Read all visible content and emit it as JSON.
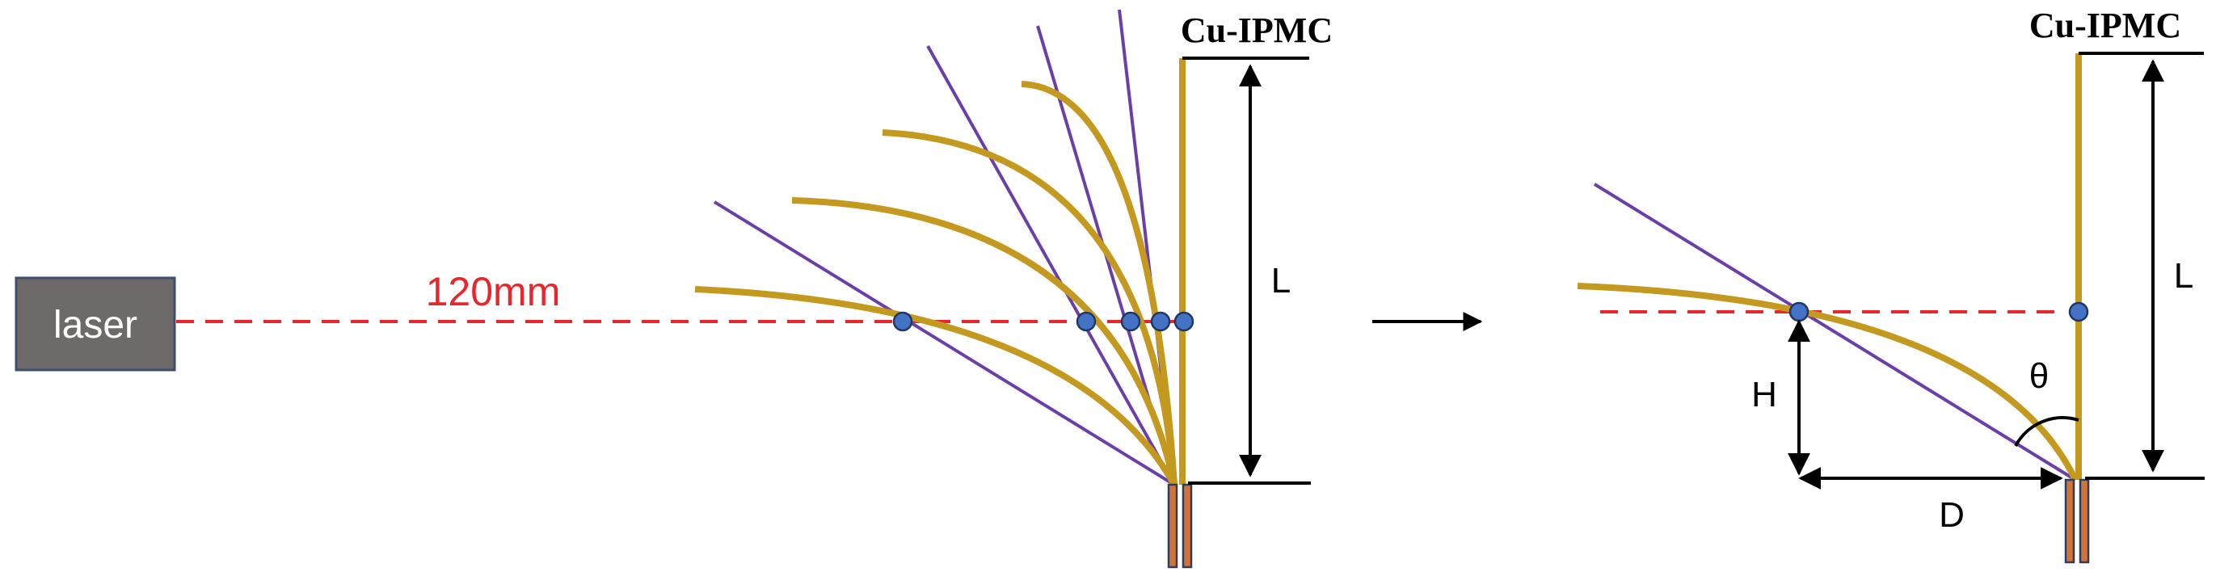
{
  "laser": {
    "label": "laser"
  },
  "distance_label": "120mm",
  "left_panel": {
    "sample_label": "Cu-IPMC",
    "length_label": "L"
  },
  "right_panel": {
    "sample_label": "Cu-IPMC",
    "length_label": "L",
    "height_label": "H",
    "displacement_label": "D",
    "angle_label": "θ"
  },
  "colors": {
    "strip": "#C39A1F",
    "tangent": "#6B3FA8",
    "beam": "#E8262B",
    "dot": "#4472C4",
    "laser_box": "#6E6A6A",
    "clamp": "#D2733A"
  }
}
